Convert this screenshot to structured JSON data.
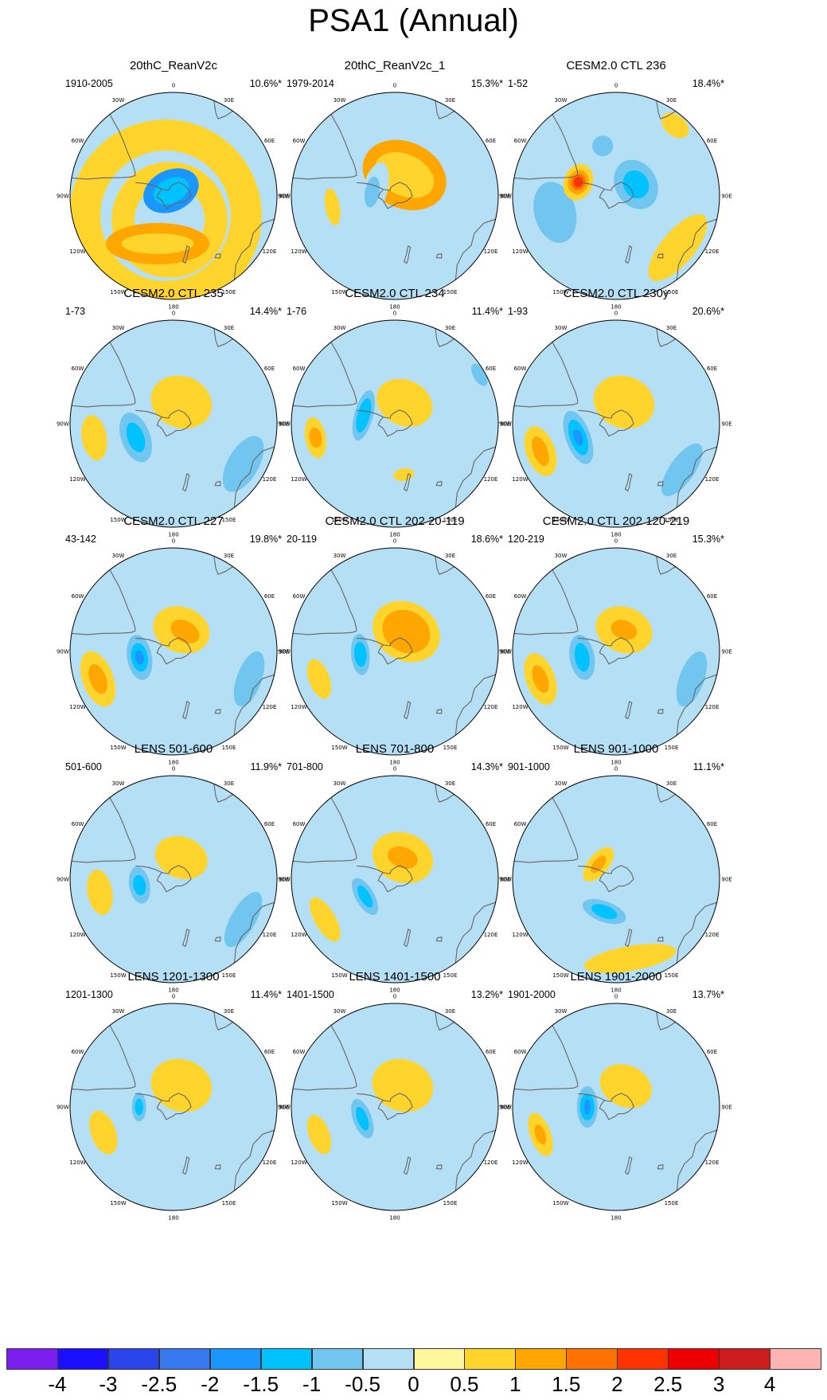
{
  "title": "PSA1 (Annual)",
  "colors": {
    "levels": [
      "#7a1fed",
      "#1a0fff",
      "#2a45ea",
      "#3878ee",
      "#1c96ff",
      "#00c2ff",
      "#70c6ef",
      "#b5dff5",
      "#fff79c",
      "#ffd42c",
      "#ffa600",
      "#ff7100",
      "#ff3300",
      "#ec0000",
      "#cd1c1c",
      "#ffb3b3"
    ],
    "coast": "#666666"
  },
  "colorbar": {
    "labels": [
      "-4",
      "-3",
      "-2.5",
      "-2",
      "-1.5",
      "-1",
      "-0.5",
      "0",
      "0.5",
      "1",
      "1.5",
      "2",
      "2.5",
      "3",
      "4"
    ]
  },
  "longitude_labels": {
    "top": "0",
    "bottom": "180",
    "l30W": "30W",
    "l60W": "60W",
    "l90W": "90W",
    "l120W": "120W",
    "l150W": "150W",
    "l30E": "30E",
    "l60E": "60E",
    "l90E": "90E",
    "l120E": "120E",
    "l150E": "150E"
  },
  "panels": [
    {
      "title": "20thC_ReanV2c",
      "period": "1910-2005",
      "variance": "10.6%*",
      "features": [
        [
          "ring",
          "pos",
          1,
          2
        ],
        [
          "blob",
          "neg",
          4,
          -25,
          5,
          0.28,
          0.2
        ],
        [
          "blob",
          "neg",
          5,
          -25,
          5,
          0.18,
          0.12
        ]
      ]
    },
    {
      "title": "20thC_ReanV2c_1",
      "period": "1979-2014",
      "variance": "15.3%*",
      "features": [
        [
          "blob",
          "pos",
          10,
          25,
          20,
          0.42,
          0.32
        ],
        [
          "blob",
          "pos",
          9,
          25,
          20,
          0.3,
          0.2
        ],
        [
          "blob",
          "neg",
          7,
          -75,
          18,
          0.28,
          0.12
        ],
        [
          "blob",
          "neg",
          6,
          -80,
          20,
          0.15,
          0.07
        ],
        [
          "blob",
          "pos",
          9,
          -100,
          55,
          0.18,
          0.07
        ],
        [
          "blob",
          "neg",
          7,
          120,
          45,
          0.24,
          0.12
        ],
        [
          "blob",
          "neg",
          7,
          165,
          75,
          0.25,
          0.12
        ]
      ]
    },
    {
      "title": "CESM2.0 CTL 236",
      "period": "1-52",
      "variance": "18.4%*",
      "features": [
        [
          "blob",
          "neg",
          7,
          -105,
          55,
          0.5,
          0.36
        ],
        [
          "blob",
          "neg",
          6,
          -105,
          55,
          0.3,
          0.2
        ],
        [
          "blob",
          "neg",
          6,
          -15,
          45,
          0.1,
          0.1
        ],
        [
          "blob",
          "neg",
          6,
          60,
          20,
          0.25,
          0.2
        ],
        [
          "blob",
          "neg",
          5,
          60,
          20,
          0.14,
          0.12
        ],
        [
          "blob",
          "pos",
          9,
          -70,
          35,
          0.18,
          0.14
        ],
        [
          "blob",
          "pos",
          10,
          -70,
          35,
          0.12,
          0.1
        ],
        [
          "blob",
          "pos",
          11,
          -70,
          35,
          0.08,
          0.07
        ],
        [
          "blob",
          "pos",
          12,
          -70,
          35,
          0.05,
          0.045
        ],
        [
          "blob",
          "pos",
          9,
          130,
          70,
          0.4,
          0.16
        ],
        [
          "blob",
          "pos",
          9,
          40,
          80,
          0.15,
          0.1
        ]
      ]
    },
    {
      "title": "CESM2.0 CTL 235",
      "period": "1-73",
      "variance": "14.4%*",
      "features": [
        [
          "blob",
          "neg",
          7,
          20,
          80,
          0.3,
          0.5
        ],
        [
          "blob",
          "neg",
          6,
          120,
          70,
          0.3,
          0.15
        ],
        [
          "blob",
          "neg",
          6,
          -110,
          35,
          0.25,
          0.14
        ],
        [
          "blob",
          "neg",
          5,
          -110,
          35,
          0.15,
          0.08
        ],
        [
          "blob",
          "pos",
          9,
          20,
          20,
          0.3,
          0.25
        ],
        [
          "blob",
          "pos",
          9,
          -100,
          70,
          0.22,
          0.12
        ]
      ]
    },
    {
      "title": "CESM2.0 CTL 234",
      "period": "1-76",
      "variance": "11.4%*",
      "features": [
        [
          "blob",
          "neg",
          7,
          -75,
          28,
          0.35,
          0.14
        ],
        [
          "blob",
          "neg",
          6,
          -75,
          28,
          0.25,
          0.09
        ],
        [
          "blob",
          "neg",
          5,
          -75,
          28,
          0.17,
          0.06
        ],
        [
          "blob",
          "neg",
          7,
          130,
          70,
          0.28,
          0.15
        ],
        [
          "blob",
          "neg",
          6,
          60,
          85,
          0.12,
          0.06
        ],
        [
          "blob",
          "pos",
          9,
          25,
          20,
          0.28,
          0.22
        ],
        [
          "blob",
          "pos",
          9,
          -100,
          70,
          0.2,
          0.1
        ],
        [
          "blob",
          "pos",
          10,
          -100,
          70,
          0.1,
          0.06
        ],
        [
          "blob",
          "pos",
          9,
          170,
          45,
          0.1,
          0.06
        ]
      ]
    },
    {
      "title": "CESM2.0 CTL 230y",
      "period": "1-93",
      "variance": "20.6%*",
      "features": [
        [
          "blob",
          "neg",
          7,
          -110,
          35,
          0.36,
          0.16
        ],
        [
          "blob",
          "neg",
          6,
          -110,
          35,
          0.27,
          0.12
        ],
        [
          "blob",
          "neg",
          5,
          -110,
          35,
          0.18,
          0.08
        ],
        [
          "blob",
          "neg",
          4,
          -110,
          35,
          0.08,
          0.04
        ],
        [
          "blob",
          "neg",
          6,
          125,
          70,
          0.3,
          0.12
        ],
        [
          "blob",
          "pos",
          9,
          20,
          20,
          0.3,
          0.25
        ],
        [
          "blob",
          "pos",
          9,
          -110,
          70,
          0.25,
          0.14
        ],
        [
          "blob",
          "pos",
          10,
          -110,
          70,
          0.15,
          0.07
        ]
      ]
    },
    {
      "title": "CESM2.0 CTL 227",
      "period": "43-142",
      "variance": "19.8%*",
      "features": [
        [
          "blob",
          "neg",
          7,
          -100,
          30,
          0.3,
          0.18
        ],
        [
          "blob",
          "neg",
          6,
          -100,
          30,
          0.22,
          0.12
        ],
        [
          "blob",
          "neg",
          5,
          -100,
          30,
          0.14,
          0.08
        ],
        [
          "blob",
          "neg",
          4,
          -100,
          30,
          0.07,
          0.04
        ],
        [
          "blob",
          "neg",
          6,
          110,
          70,
          0.28,
          0.12
        ],
        [
          "blob",
          "pos",
          9,
          20,
          20,
          0.28,
          0.22
        ],
        [
          "blob",
          "pos",
          10,
          30,
          20,
          0.15,
          0.1
        ],
        [
          "blob",
          "pos",
          9,
          -110,
          70,
          0.28,
          0.15
        ],
        [
          "blob",
          "pos",
          10,
          -110,
          70,
          0.15,
          0.08
        ]
      ]
    },
    {
      "title": "CESM2.0 CTL 202 20-119",
      "period": "20-119",
      "variance": "18.6%*",
      "features": [
        [
          "blob",
          "pos",
          9,
          30,
          20,
          0.34,
          0.28
        ],
        [
          "blob",
          "pos",
          10,
          30,
          20,
          0.24,
          0.2
        ],
        [
          "blob",
          "neg",
          7,
          -95,
          30,
          0.28,
          0.15
        ],
        [
          "blob",
          "neg",
          6,
          -95,
          30,
          0.2,
          0.09
        ],
        [
          "blob",
          "neg",
          5,
          -95,
          30,
          0.12,
          0.06
        ],
        [
          "blob",
          "neg",
          7,
          120,
          65,
          0.3,
          0.15
        ],
        [
          "blob",
          "pos",
          9,
          -110,
          70,
          0.2,
          0.1
        ]
      ]
    },
    {
      "title": "CESM2.0 CTL 202 120-219",
      "period": "120-219",
      "variance": "15.3%*",
      "features": [
        [
          "blob",
          "neg",
          7,
          -100,
          30,
          0.3,
          0.17
        ],
        [
          "blob",
          "neg",
          6,
          -100,
          30,
          0.22,
          0.12
        ],
        [
          "blob",
          "neg",
          5,
          -100,
          30,
          0.14,
          0.07
        ],
        [
          "blob",
          "neg",
          6,
          110,
          70,
          0.28,
          0.12
        ],
        [
          "blob",
          "pos",
          9,
          20,
          20,
          0.28,
          0.22
        ],
        [
          "blob",
          "pos",
          10,
          20,
          20,
          0.13,
          0.09
        ],
        [
          "blob",
          "pos",
          9,
          -110,
          70,
          0.26,
          0.14
        ],
        [
          "blob",
          "pos",
          10,
          -110,
          70,
          0.14,
          0.07
        ]
      ]
    },
    {
      "title": "LENS 501-600",
      "period": "501-600",
      "variance": "11.9%*",
      "features": [
        [
          "blob",
          "neg",
          7,
          30,
          85,
          0.3,
          0.4
        ],
        [
          "blob",
          "neg",
          6,
          120,
          70,
          0.3,
          0.12
        ],
        [
          "blob",
          "neg",
          7,
          -100,
          30,
          0.25,
          0.14
        ],
        [
          "blob",
          "neg",
          6,
          -100,
          30,
          0.18,
          0.1
        ],
        [
          "blob",
          "neg",
          5,
          -100,
          30,
          0.1,
          0.06
        ],
        [
          "blob",
          "pos",
          9,
          20,
          20,
          0.26,
          0.2
        ],
        [
          "blob",
          "pos",
          9,
          -100,
          65,
          0.22,
          0.12
        ]
      ]
    },
    {
      "title": "LENS 701-800",
      "period": "701-800",
      "variance": "14.3%*",
      "features": [
        [
          "blob",
          "pos",
          9,
          20,
          20,
          0.3,
          0.24
        ],
        [
          "blob",
          "pos",
          10,
          20,
          20,
          0.15,
          0.1
        ],
        [
          "blob",
          "neg",
          7,
          -120,
          30,
          0.3,
          0.14
        ],
        [
          "blob",
          "neg",
          6,
          -120,
          30,
          0.2,
          0.09
        ],
        [
          "blob",
          "neg",
          5,
          -120,
          30,
          0.12,
          0.05
        ],
        [
          "blob",
          "neg",
          7,
          125,
          65,
          0.3,
          0.14
        ],
        [
          "blob",
          "neg",
          7,
          50,
          90,
          0.18,
          0.08
        ],
        [
          "blob",
          "pos",
          9,
          -120,
          70,
          0.24,
          0.1
        ]
      ]
    },
    {
      "title": "LENS 901-1000",
      "period": "901-1000",
      "variance": "11.1%*",
      "features": [
        [
          "blob",
          "neg",
          7,
          -160,
          30,
          0.32,
          0.15
        ],
        [
          "blob",
          "neg",
          6,
          -160,
          30,
          0.22,
          0.1
        ],
        [
          "blob",
          "neg",
          5,
          -160,
          30,
          0.13,
          0.06
        ],
        [
          "blob",
          "neg",
          7,
          80,
          50,
          0.2,
          0.1
        ],
        [
          "blob",
          "neg",
          7,
          20,
          70,
          0.2,
          0.08
        ],
        [
          "blob",
          "pos",
          9,
          -50,
          20,
          0.2,
          0.1
        ],
        [
          "blob",
          "pos",
          10,
          -50,
          20,
          0.1,
          0.05
        ],
        [
          "blob",
          "pos",
          9,
          170,
          70,
          0.45,
          0.12
        ],
        [
          "blob",
          "neg",
          7,
          -60,
          75,
          0.15,
          0.06
        ]
      ]
    },
    {
      "title": "LENS 1201-1300",
      "period": "1201-1300",
      "variance": "11.4%*",
      "features": [
        [
          "blob",
          "neg",
          7,
          30,
          85,
          0.4,
          0.5
        ],
        [
          "blob",
          "neg",
          7,
          -90,
          30,
          0.2,
          0.12
        ],
        [
          "blob",
          "neg",
          6,
          -90,
          30,
          0.14,
          0.07
        ],
        [
          "blob",
          "neg",
          5,
          -90,
          30,
          0.08,
          0.04
        ],
        [
          "blob",
          "pos",
          9,
          20,
          20,
          0.3,
          0.25
        ],
        [
          "blob",
          "pos",
          9,
          -110,
          65,
          0.22,
          0.12
        ]
      ]
    },
    {
      "title": "LENS 1401-1500",
      "period": "1401-1500",
      "variance": "13.2%*",
      "features": [
        [
          "blob",
          "neg",
          7,
          -110,
          30,
          0.28,
          0.14
        ],
        [
          "blob",
          "neg",
          6,
          -110,
          30,
          0.2,
          0.09
        ],
        [
          "blob",
          "neg",
          5,
          -110,
          30,
          0.12,
          0.05
        ],
        [
          "blob",
          "neg",
          7,
          90,
          80,
          0.3,
          0.1
        ],
        [
          "blob",
          "neg",
          7,
          150,
          50,
          0.2,
          0.1
        ],
        [
          "blob",
          "pos",
          9,
          20,
          20,
          0.3,
          0.25
        ],
        [
          "blob",
          "pos",
          9,
          -110,
          70,
          0.2,
          0.1
        ]
      ]
    },
    {
      "title": "LENS 1901-2000",
      "period": "1901-2000",
      "variance": "13.7%*",
      "features": [
        [
          "blob",
          "neg",
          7,
          -90,
          25,
          0.28,
          0.16
        ],
        [
          "blob",
          "neg",
          6,
          -90,
          25,
          0.2,
          0.1
        ],
        [
          "blob",
          "neg",
          5,
          -90,
          25,
          0.13,
          0.07
        ],
        [
          "blob",
          "neg",
          4,
          -90,
          25,
          0.07,
          0.03
        ],
        [
          "blob",
          "neg",
          7,
          40,
          85,
          0.35,
          0.3
        ],
        [
          "blob",
          "pos",
          9,
          25,
          20,
          0.26,
          0.2
        ],
        [
          "blob",
          "pos",
          9,
          -110,
          70,
          0.22,
          0.1
        ],
        [
          "blob",
          "pos",
          10,
          -110,
          70,
          0.1,
          0.05
        ]
      ]
    }
  ]
}
